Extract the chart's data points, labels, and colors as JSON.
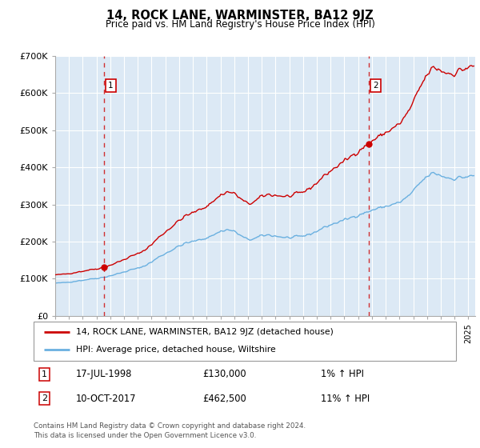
{
  "title": "14, ROCK LANE, WARMINSTER, BA12 9JZ",
  "subtitle": "Price paid vs. HM Land Registry's House Price Index (HPI)",
  "ylim": [
    0,
    700000
  ],
  "xlim_start": 1995.0,
  "xlim_end": 2025.5,
  "plot_bg_color": "#dce9f5",
  "grid_color": "#ffffff",
  "line_color_property": "#cc0000",
  "line_color_hpi": "#6ab0e0",
  "sale1_x": 1998.54,
  "sale1_y": 130000,
  "sale2_x": 2017.77,
  "sale2_y": 462500,
  "legend_line1": "14, ROCK LANE, WARMINSTER, BA12 9JZ (detached house)",
  "legend_line2": "HPI: Average price, detached house, Wiltshire",
  "annotation1_date": "17-JUL-1998",
  "annotation1_price": "£130,000",
  "annotation1_hpi": "1% ↑ HPI",
  "annotation2_date": "10-OCT-2017",
  "annotation2_price": "£462,500",
  "annotation2_hpi": "11% ↑ HPI",
  "footer": "Contains HM Land Registry data © Crown copyright and database right 2024.\nThis data is licensed under the Open Government Licence v3.0.",
  "ytick_labels": [
    "£0",
    "£100K",
    "£200K",
    "£300K",
    "£400K",
    "£500K",
    "£600K",
    "£700K"
  ]
}
